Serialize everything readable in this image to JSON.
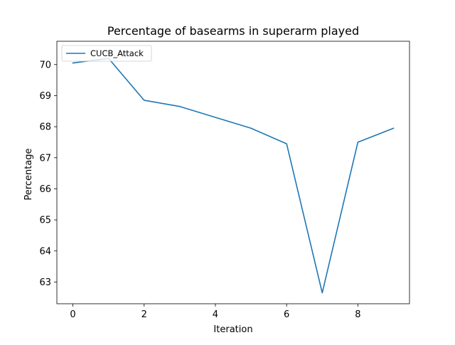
{
  "chart_data": {
    "type": "line",
    "title": "Percentage of basearms in superarm played",
    "xlabel": "Iteration",
    "ylabel": "Percentage",
    "xlim": [
      -0.45,
      9.45
    ],
    "ylim": [
      62.3,
      70.75
    ],
    "x_ticks": [
      0,
      2,
      4,
      6,
      8
    ],
    "y_ticks": [
      63,
      64,
      65,
      66,
      67,
      68,
      69,
      70
    ],
    "grid": false,
    "legend_position": "upper left",
    "series": [
      {
        "name": "CUCB_Attack",
        "color": "#1f77b4",
        "x": [
          0,
          1,
          2,
          3,
          4,
          5,
          6,
          7,
          8,
          9
        ],
        "y": [
          70.05,
          70.2,
          68.85,
          68.65,
          68.3,
          67.95,
          67.45,
          62.65,
          67.5,
          67.95
        ]
      }
    ]
  }
}
